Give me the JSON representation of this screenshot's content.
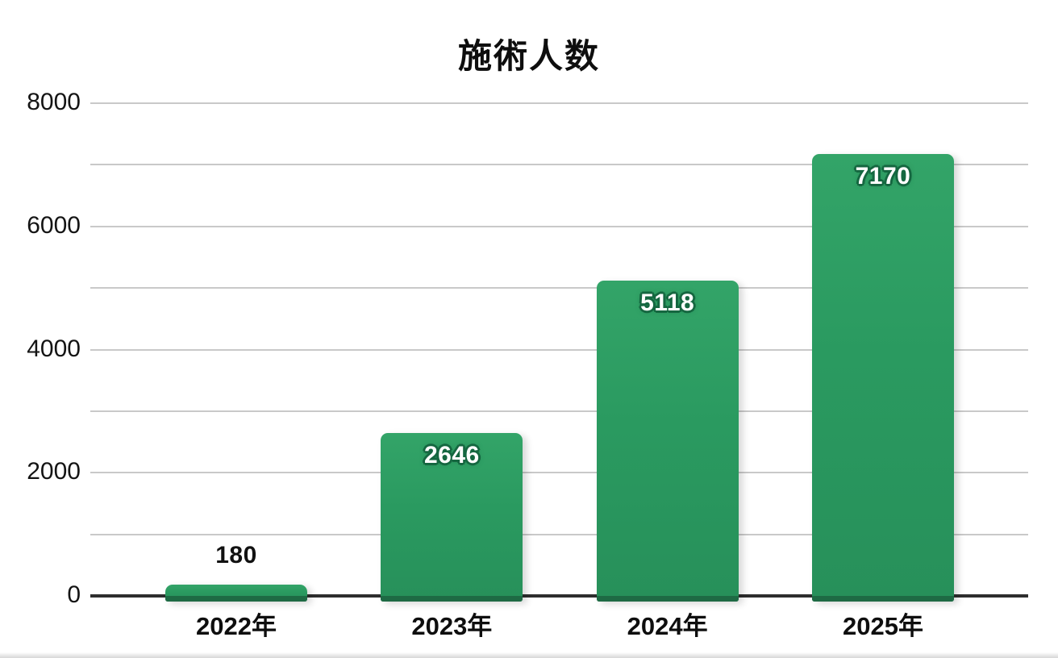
{
  "chart_data": {
    "type": "bar",
    "title": "施術人数",
    "categories": [
      "2022年",
      "2023年",
      "2024年",
      "2025年"
    ],
    "values": [
      180,
      2646,
      5118,
      7170
    ],
    "bar_value_labels": [
      "180",
      "2646",
      "5118",
      "7170"
    ],
    "xlabel": "",
    "ylabel": "",
    "ylim": [
      0,
      8000
    ],
    "y_tick_values": [
      0,
      2000,
      4000,
      6000,
      8000
    ],
    "y_tick_labels": [
      "0",
      "2000",
      "4000",
      "6000",
      "8000"
    ],
    "gridline_interval": 1000,
    "grid": true,
    "legend": false,
    "colors": {
      "bar_top": "#33a468",
      "bar_bottom": "#27905a",
      "bar_base_edge": "#1e6a44",
      "value_label_inside": "#ffffff",
      "value_label_outline": "#156740",
      "value_label_outside": "#111111",
      "gridline": "#c9c9c9",
      "axis_line": "#2e2e2e",
      "text": "#0e0e0e",
      "background": "#ffffff"
    }
  }
}
